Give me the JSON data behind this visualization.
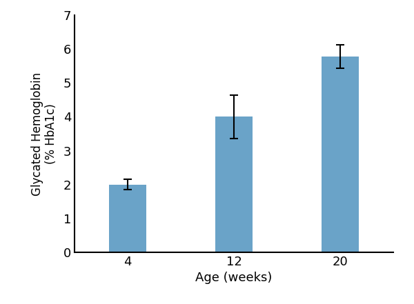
{
  "categories": [
    "4",
    "12",
    "20"
  ],
  "values": [
    2.0,
    4.0,
    5.78
  ],
  "errors": [
    0.15,
    0.65,
    0.35
  ],
  "bar_color": "#6aa3c8",
  "bar_width": 0.35,
  "xlabel": "Age (weeks)",
  "ylabel": "Glycated Hemoglobin\n(% HbA1c)",
  "ylim": [
    0,
    7
  ],
  "yticks": [
    0,
    1,
    2,
    3,
    4,
    5,
    6,
    7
  ],
  "title": "",
  "background_color": "#ffffff",
  "error_color": "black",
  "error_linewidth": 1.5,
  "error_capsize": 4,
  "xlabel_fontsize": 13,
  "ylabel_fontsize": 12,
  "tick_fontsize": 13
}
